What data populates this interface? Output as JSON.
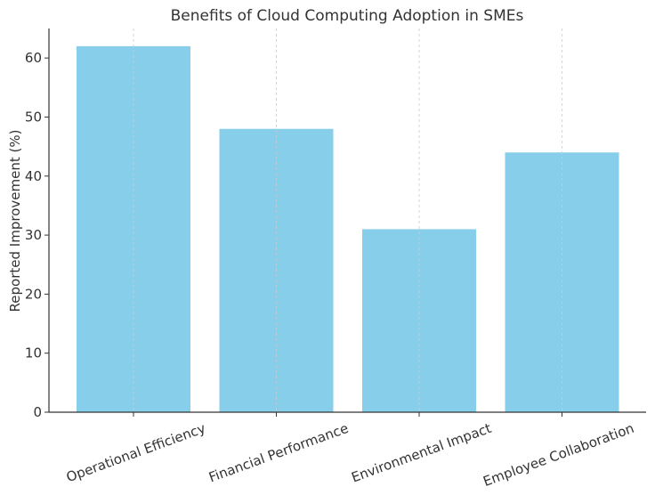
{
  "chart_data": {
    "type": "bar",
    "title": "Benefits of Cloud Computing Adoption in SMEs",
    "xlabel": "",
    "ylabel": "Reported Improvement (%)",
    "categories": [
      "Operational Efficiency",
      "Financial Performance",
      "Environmental Impact",
      "Employee Collaboration"
    ],
    "values": [
      62,
      48,
      31,
      44
    ],
    "ylim": [
      0,
      65
    ],
    "yticks": [
      0,
      10,
      20,
      30,
      40,
      50,
      60
    ],
    "grid": "vertical dashed",
    "bar_color": "#87CEEB"
  }
}
